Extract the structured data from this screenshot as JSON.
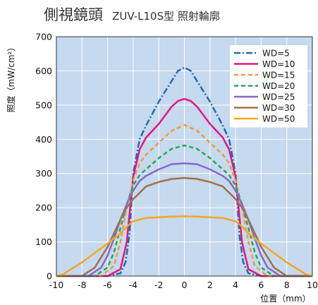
{
  "chart_data": {
    "type": "line",
    "title_main": "側視鏡頭",
    "title_sub": "ZUV-L10S型 照射輪廓",
    "ylabel": "照度（mW/cm²）",
    "xlabel": "位置（mm）",
    "xlim": [
      -10,
      10
    ],
    "ylim": [
      0,
      700
    ],
    "xticks": [
      -10,
      -8,
      -6,
      -4,
      -2,
      0,
      2,
      4,
      6,
      8,
      10
    ],
    "yticks": [
      0,
      100,
      200,
      300,
      400,
      500,
      600,
      700
    ],
    "grid": true,
    "legend_position": "top-right",
    "background_color": "#c5d9ef",
    "series": [
      {
        "name": "WD=5",
        "color": "#1f6bb0",
        "dash": "9,3,2,3",
        "x": [
          -10,
          -6,
          -5,
          -4.6,
          -4.3,
          -4,
          -3.5,
          -3,
          -2,
          -1,
          -0.5,
          0,
          0.5,
          1,
          2,
          3,
          3.5,
          4,
          4.3,
          4.6,
          5,
          6,
          10
        ],
        "y": [
          0,
          0,
          8,
          40,
          120,
          300,
          400,
          440,
          510,
          570,
          600,
          610,
          600,
          570,
          510,
          440,
          400,
          300,
          120,
          40,
          8,
          0,
          0
        ]
      },
      {
        "name": "WD=10",
        "color": "#e8137f",
        "dash": "",
        "x": [
          -10,
          -6,
          -5,
          -4.5,
          -4,
          -3.5,
          -3,
          -2,
          -1,
          -0.5,
          0,
          0.5,
          1,
          2,
          3,
          3.5,
          4,
          4.5,
          5,
          6,
          10
        ],
        "y": [
          0,
          0,
          20,
          100,
          290,
          370,
          405,
          445,
          495,
          512,
          518,
          512,
          495,
          445,
          405,
          370,
          290,
          100,
          20,
          0,
          0
        ]
      },
      {
        "name": "WD=15",
        "color": "#f39a3c",
        "dash": "6,4",
        "x": [
          -10,
          -6.5,
          -5.5,
          -5,
          -4.5,
          -4,
          -3.5,
          -3,
          -2,
          -1,
          0,
          1,
          2,
          3,
          3.5,
          4,
          4.5,
          5,
          5.5,
          6.5,
          10
        ],
        "y": [
          0,
          0,
          30,
          100,
          200,
          280,
          330,
          355,
          390,
          425,
          442,
          425,
          390,
          355,
          330,
          280,
          200,
          100,
          30,
          0,
          0
        ]
      },
      {
        "name": "WD=20",
        "color": "#22aa55",
        "dash": "6,4",
        "x": [
          -10,
          -7,
          -6,
          -5.5,
          -5,
          -4.5,
          -4,
          -3.5,
          -3,
          -2,
          -1,
          0,
          1,
          2,
          3,
          3.5,
          4,
          4.5,
          5,
          5.5,
          6,
          7,
          10
        ],
        "y": [
          0,
          0,
          25,
          70,
          140,
          210,
          265,
          295,
          312,
          345,
          372,
          382,
          372,
          345,
          312,
          295,
          265,
          210,
          140,
          70,
          25,
          0,
          0
        ]
      },
      {
        "name": "WD=25",
        "color": "#8866cc",
        "dash": "",
        "x": [
          -10,
          -7.5,
          -6.5,
          -6,
          -5.5,
          -5,
          -4.5,
          -4,
          -3.5,
          -3,
          -2,
          -1,
          0,
          1,
          2,
          3,
          3.5,
          4,
          4.5,
          5,
          5.5,
          6,
          6.5,
          7.5,
          10
        ],
        "y": [
          0,
          0,
          25,
          60,
          110,
          165,
          210,
          250,
          278,
          293,
          312,
          327,
          330,
          327,
          312,
          293,
          278,
          250,
          210,
          165,
          110,
          60,
          25,
          0,
          0
        ]
      },
      {
        "name": "WD=30",
        "color": "#a0704a",
        "dash": "",
        "x": [
          -10,
          -8,
          -7,
          -6,
          -5,
          -4.5,
          -4,
          -3,
          -2,
          -1,
          0,
          1,
          2,
          3,
          4,
          4.5,
          5,
          6,
          7,
          8,
          10
        ],
        "y": [
          0,
          0,
          25,
          85,
          165,
          200,
          225,
          262,
          275,
          284,
          287,
          284,
          275,
          262,
          225,
          200,
          165,
          85,
          25,
          0,
          0
        ]
      },
      {
        "name": "WD=50",
        "color": "#f5a623",
        "dash": "",
        "x": [
          -10,
          -9.5,
          -8,
          -6,
          -5,
          -4.5,
          -4,
          -3,
          -2,
          -1,
          0,
          1,
          2,
          3,
          4,
          4.5,
          5,
          6,
          8,
          9.5,
          10
        ],
        "y": [
          0,
          5,
          40,
          95,
          125,
          145,
          160,
          170,
          172,
          174,
          175,
          174,
          172,
          170,
          160,
          145,
          125,
          95,
          40,
          5,
          0
        ]
      }
    ]
  }
}
